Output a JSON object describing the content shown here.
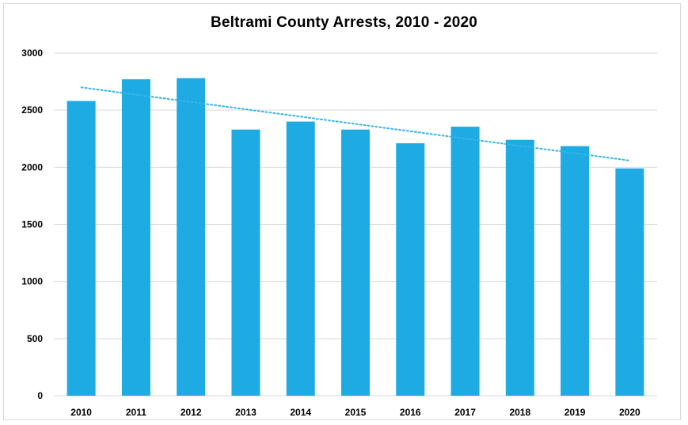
{
  "chart_data": {
    "type": "bar",
    "title": "Beltrami County Arrests, 2010 - 2020",
    "xlabel": "",
    "ylabel": "",
    "categories": [
      "2010",
      "2011",
      "2012",
      "2013",
      "2014",
      "2015",
      "2016",
      "2017",
      "2018",
      "2019",
      "2020"
    ],
    "values": [
      2580,
      2770,
      2780,
      2330,
      2400,
      2330,
      2210,
      2355,
      2240,
      2185,
      1990
    ],
    "ylim": [
      0,
      3000
    ],
    "yticks": [
      0,
      500,
      1000,
      1500,
      2000,
      2500,
      3000
    ],
    "grid": true,
    "legend": "none",
    "trendline": {
      "type": "linear",
      "style": "dotted"
    },
    "colors": {
      "bar": "#1eabe3",
      "trendline": "#36b5e8",
      "grid": "#d9d9d9"
    }
  }
}
